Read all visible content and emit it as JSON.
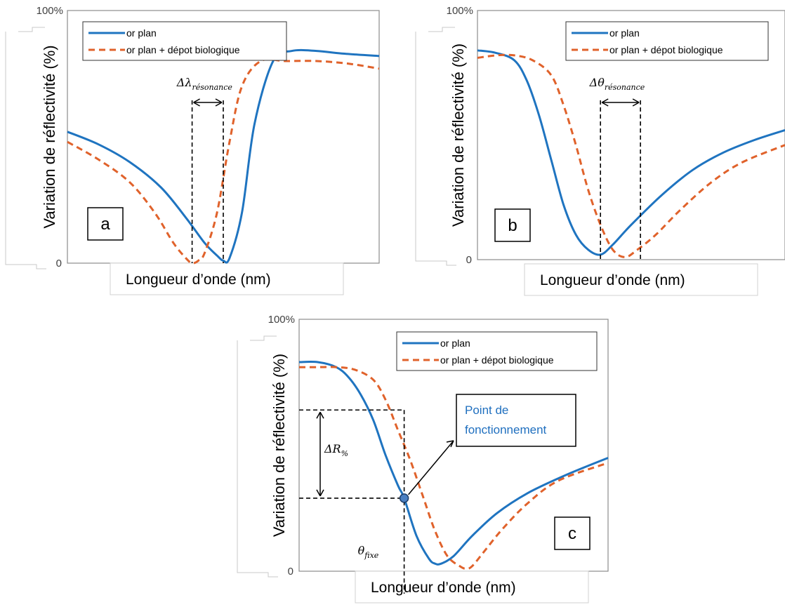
{
  "colors": {
    "series1": "#1f74c0",
    "series2": "#e0622b",
    "marker": "#4a7fc1",
    "callout_text": "#1f6fbf"
  },
  "chart_data": [
    {
      "type": "line",
      "panel_label": "a",
      "y_tick_top": "100%",
      "y_tick_bottom": "0",
      "ylabel": "Variation de réflectivité (%)",
      "xlabel": "Longueur d’onde (nm)",
      "ylim": [
        0,
        100
      ],
      "x_range": [
        0,
        100
      ],
      "grid": false,
      "legend_position": "top",
      "annotation": {
        "symbol": "Δλ",
        "subscript": "résonance"
      },
      "series": [
        {
          "name": "or plan",
          "style": "solid",
          "color": "#1f74c0",
          "x": [
            0,
            10,
            20,
            30,
            38,
            44,
            48,
            50,
            52,
            56,
            60,
            66,
            72,
            80,
            88,
            100
          ],
          "y": [
            52,
            47,
            40,
            30,
            18,
            8,
            3,
            1,
            2,
            20,
            55,
            80,
            84,
            84,
            83,
            82
          ]
        },
        {
          "name": "or plan + dépot biologique",
          "style": "dashed",
          "color": "#e0622b",
          "x": [
            0,
            10,
            20,
            28,
            34,
            38,
            40,
            42,
            44,
            48,
            52,
            56,
            62,
            70,
            80,
            90,
            100
          ],
          "y": [
            48,
            41,
            32,
            20,
            8,
            2,
            0,
            1,
            4,
            20,
            48,
            70,
            80,
            80,
            80,
            79,
            77
          ]
        }
      ],
      "markers": {
        "x1": 40,
        "x2": 50
      }
    },
    {
      "type": "line",
      "panel_label": "b",
      "y_tick_top": "100%",
      "y_tick_bottom": "0",
      "ylabel": "Variation de réflectivité (%)",
      "xlabel": "Longueur d’onde (nm)",
      "ylim": [
        0,
        100
      ],
      "x_range": [
        0,
        100
      ],
      "grid": false,
      "legend_position": "top-right",
      "annotation": {
        "symbol": "Δθ",
        "subscript": "résonance"
      },
      "series": [
        {
          "name": "or plan",
          "style": "solid",
          "color": "#1f74c0",
          "x": [
            0,
            6,
            12,
            16,
            20,
            24,
            28,
            32,
            36,
            40,
            44,
            50,
            60,
            70,
            80,
            90,
            100
          ],
          "y": [
            84,
            83,
            80,
            72,
            58,
            40,
            22,
            10,
            4,
            2,
            6,
            14,
            26,
            36,
            43,
            48,
            52
          ]
        },
        {
          "name": "or plan + dépot biologique",
          "style": "dashed",
          "color": "#e0622b",
          "x": [
            0,
            6,
            12,
            18,
            24,
            28,
            32,
            36,
            40,
            44,
            48,
            52,
            58,
            66,
            76,
            86,
            100
          ],
          "y": [
            81,
            82,
            82,
            80,
            74,
            62,
            46,
            28,
            14,
            4,
            1,
            4,
            10,
            20,
            31,
            39,
            46
          ]
        }
      ],
      "markers": {
        "x1": 40,
        "x2": 53
      }
    },
    {
      "type": "line",
      "panel_label": "c",
      "y_tick_top": "100%",
      "y_tick_bottom": "0",
      "ylabel": "Variation de réflectivité (%)",
      "xlabel": "Longueur d’onde (nm)",
      "ylim": [
        0,
        100
      ],
      "x_range": [
        0,
        100
      ],
      "grid": false,
      "legend_position": "top-right",
      "annotation": {
        "delta_symbol": "ΔR",
        "delta_subscript": "%",
        "theta_symbol": "θ",
        "theta_subscript": "fixe",
        "callout_line1": "Point de",
        "callout_line2": "fonctionnement",
        "upper_level": 64,
        "lower_level": 29,
        "theta_x": 34
      },
      "series": [
        {
          "name": "or plan",
          "style": "solid",
          "color": "#1f74c0",
          "x": [
            0,
            6,
            12,
            16,
            20,
            24,
            28,
            32,
            34,
            38,
            42,
            44,
            46,
            50,
            56,
            64,
            74,
            86,
            100
          ],
          "y": [
            83,
            83,
            81,
            77,
            70,
            60,
            46,
            34,
            29,
            14,
            5,
            3,
            3,
            6,
            14,
            23,
            31,
            38,
            45
          ]
        },
        {
          "name": "or plan + dépot biologique",
          "style": "dashed",
          "color": "#e0622b",
          "x": [
            0,
            6,
            12,
            18,
            24,
            28,
            32,
            36,
            40,
            44,
            48,
            52,
            54,
            56,
            60,
            66,
            74,
            84,
            100
          ],
          "y": [
            81,
            81,
            81,
            80,
            76,
            68,
            56,
            44,
            30,
            16,
            6,
            2,
            1,
            2,
            8,
            17,
            27,
            36,
            43
          ]
        }
      ]
    }
  ]
}
